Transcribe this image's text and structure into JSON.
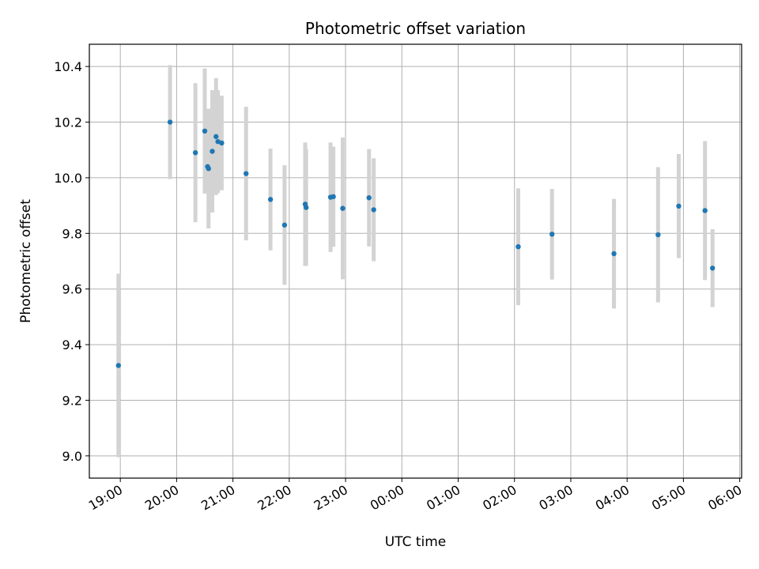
{
  "chart_data": {
    "type": "scatter",
    "title": "Photometric offset variation",
    "xlabel": "UTC time",
    "ylabel": "Photometric offset",
    "x_unit": "UTC time (HH:MM), night spanning midnight",
    "xlim": [
      "18:27",
      "06:02"
    ],
    "ylim": [
      8.92,
      10.48
    ],
    "grid": true,
    "x_ticks": [
      "19:00",
      "20:00",
      "21:00",
      "22:00",
      "23:00",
      "00:00",
      "01:00",
      "02:00",
      "03:00",
      "04:00",
      "05:00",
      "06:00"
    ],
    "y_ticks": [
      9.0,
      9.2,
      9.4,
      9.6,
      9.8,
      10.0,
      10.2,
      10.4
    ],
    "point_color": "#1f77b4",
    "errorbar_color": "#d3d3d3",
    "points": [
      {
        "x": "18:58",
        "y": 9.325,
        "err": 0.33
      },
      {
        "x": "19:53",
        "y": 10.2,
        "err": 0.205
      },
      {
        "x": "20:20",
        "y": 10.09,
        "err": 0.25
      },
      {
        "x": "20:30",
        "y": 10.168,
        "err": 0.225
      },
      {
        "x": "20:33",
        "y": 10.04,
        "err": 0.095
      },
      {
        "x": "20:34",
        "y": 10.033,
        "err": 0.215
      },
      {
        "x": "20:38",
        "y": 10.095,
        "err": 0.22
      },
      {
        "x": "20:42",
        "y": 10.148,
        "err": 0.21
      },
      {
        "x": "20:44",
        "y": 10.13,
        "err": 0.185
      },
      {
        "x": "20:48",
        "y": 10.125,
        "err": 0.17
      },
      {
        "x": "21:14",
        "y": 10.015,
        "err": 0.24
      },
      {
        "x": "21:40",
        "y": 9.922,
        "err": 0.183
      },
      {
        "x": "21:55",
        "y": 9.83,
        "err": 0.215
      },
      {
        "x": "22:17",
        "y": 9.905,
        "err": 0.222
      },
      {
        "x": "22:18",
        "y": 9.893,
        "err": 0.21
      },
      {
        "x": "22:44",
        "y": 9.93,
        "err": 0.197
      },
      {
        "x": "22:47",
        "y": 9.932,
        "err": 0.18
      },
      {
        "x": "22:57",
        "y": 9.89,
        "err": 0.255
      },
      {
        "x": "23:25",
        "y": 9.928,
        "err": 0.175
      },
      {
        "x": "23:30",
        "y": 9.885,
        "err": 0.185
      },
      {
        "x": "02:04",
        "y": 9.752,
        "err": 0.21
      },
      {
        "x": "02:40",
        "y": 9.797,
        "err": 0.163
      },
      {
        "x": "03:46",
        "y": 9.727,
        "err": 0.197
      },
      {
        "x": "04:33",
        "y": 9.795,
        "err": 0.243
      },
      {
        "x": "04:55",
        "y": 9.898,
        "err": 0.187
      },
      {
        "x": "05:23",
        "y": 9.882,
        "err": 0.25
      },
      {
        "x": "05:31",
        "y": 9.675,
        "err": 0.14
      }
    ]
  }
}
